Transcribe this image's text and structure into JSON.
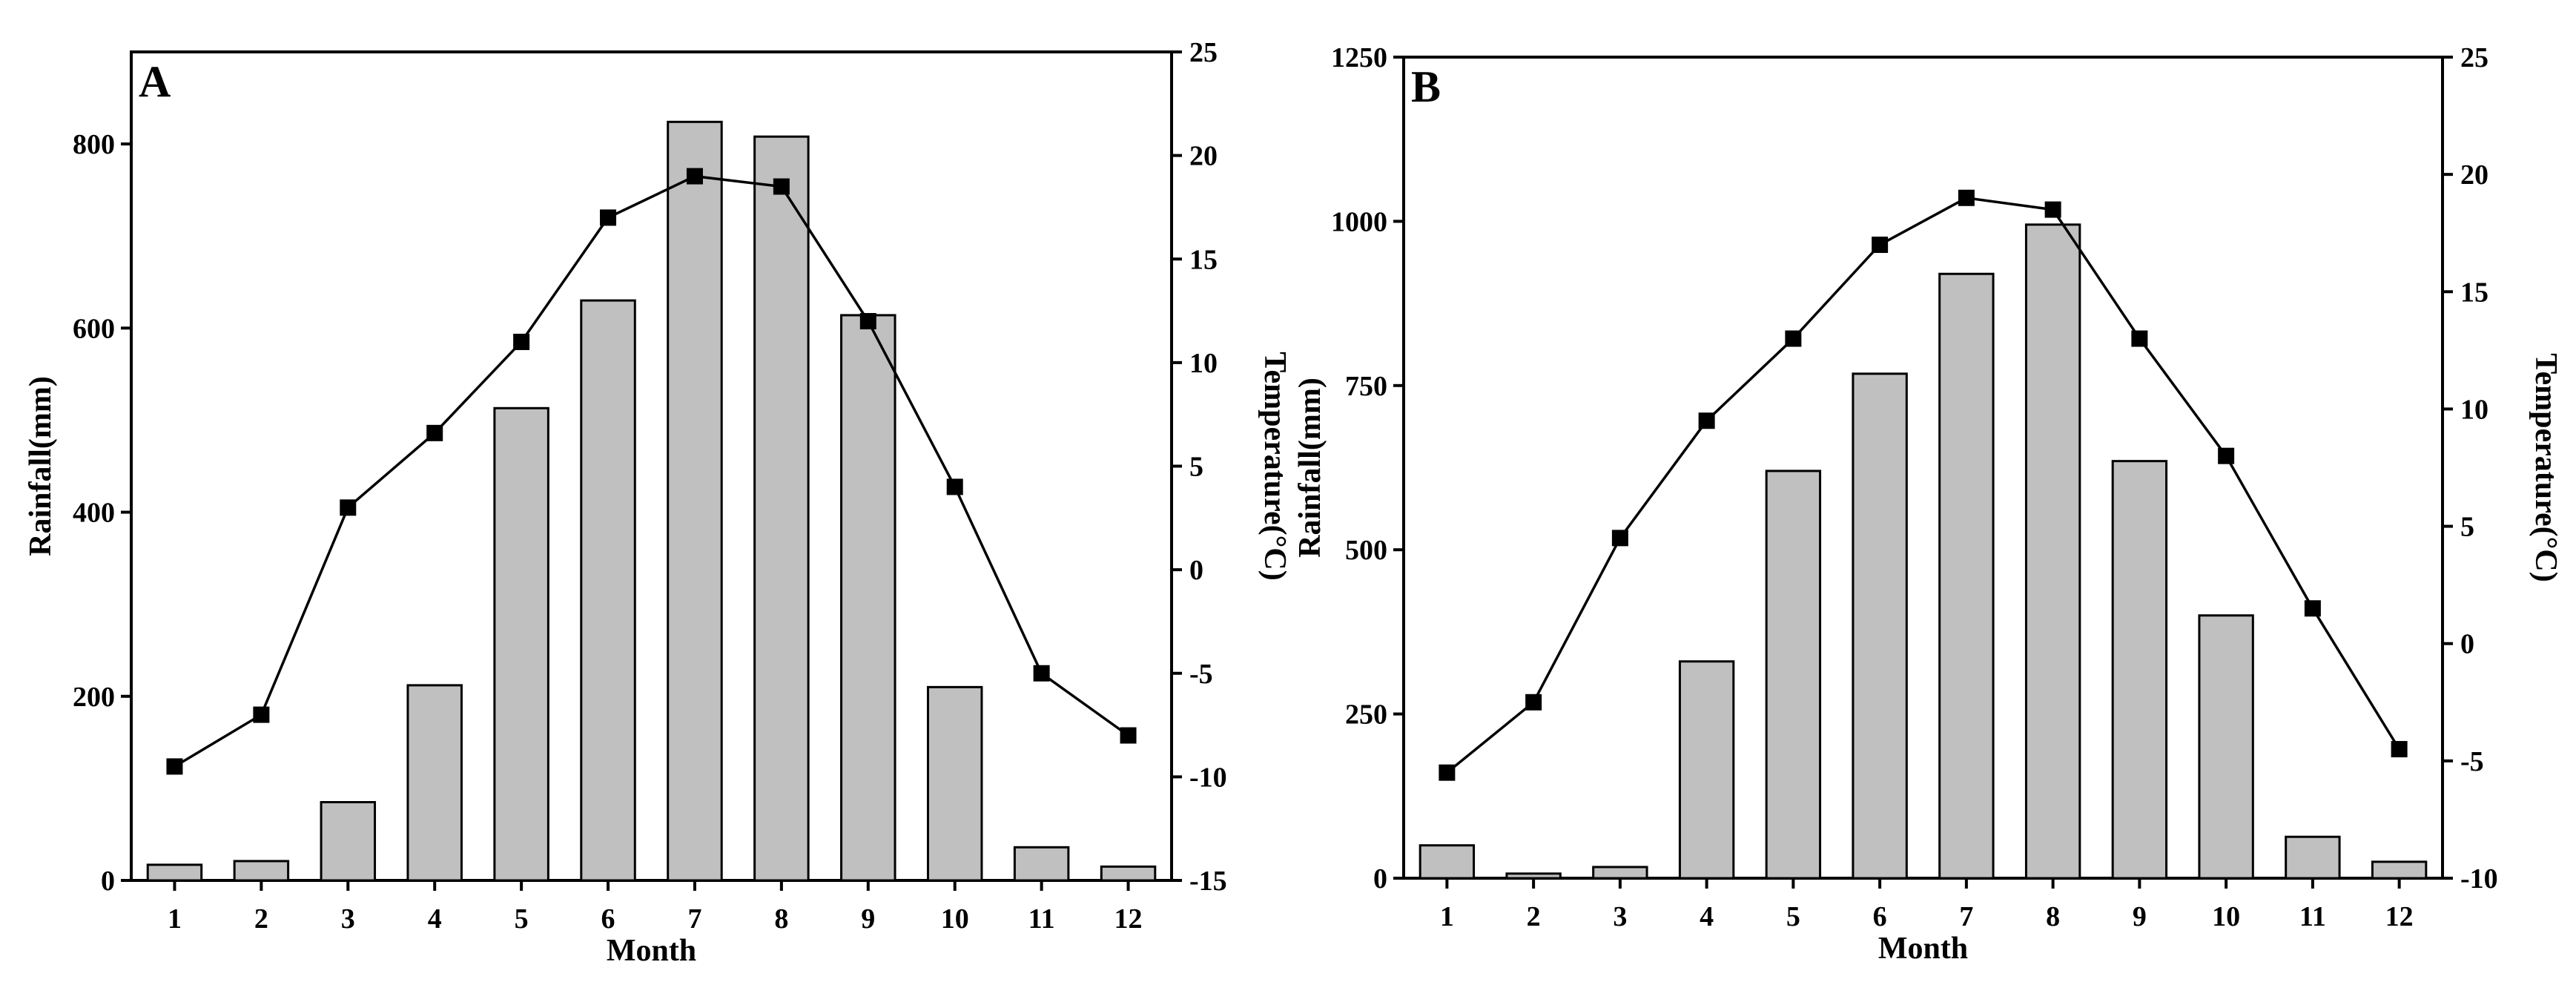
{
  "chart_data": [
    {
      "panel": "A",
      "type": "bar+line",
      "categories": [
        "1",
        "2",
        "3",
        "4",
        "5",
        "6",
        "7",
        "8",
        "9",
        "10",
        "11",
        "12"
      ],
      "xlabel": "Month",
      "series": [
        {
          "name": "Rainfall",
          "kind": "bar",
          "axis": "left",
          "values": [
            17,
            21,
            85,
            212,
            513,
            630,
            824,
            808,
            614,
            210,
            36,
            15
          ]
        },
        {
          "name": "Temperature",
          "kind": "line",
          "axis": "right",
          "values": [
            -9.5,
            -7,
            3,
            6.6,
            11,
            17,
            19,
            18.5,
            12,
            4,
            -5,
            -8
          ]
        }
      ],
      "left_axis": {
        "label": "Rainfall(mm)",
        "ylim": [
          0,
          900
        ],
        "ticks": [
          0,
          200,
          400,
          600,
          800
        ],
        "tick_labels": [
          "0",
          "200",
          "400",
          "600",
          "800"
        ]
      },
      "right_axis": {
        "label": "Temperature(°C)",
        "ylim": [
          -15,
          25
        ],
        "ticks": [
          -15,
          -10,
          -5,
          0,
          5,
          10,
          15,
          20,
          25
        ],
        "tick_labels": [
          "-15",
          "-10",
          "-5",
          "0",
          "5",
          "10",
          "15",
          "20",
          "25"
        ]
      }
    },
    {
      "panel": "B",
      "type": "bar+line",
      "categories": [
        "1",
        "2",
        "3",
        "4",
        "5",
        "6",
        "7",
        "8",
        "9",
        "10",
        "11",
        "12"
      ],
      "xlabel": "Month",
      "series": [
        {
          "name": "Rainfall",
          "kind": "bar",
          "axis": "left",
          "values": [
            50,
            7,
            17,
            330,
            620,
            768,
            920,
            995,
            635,
            400,
            63,
            25
          ]
        },
        {
          "name": "Temperature",
          "kind": "line",
          "axis": "right",
          "values": [
            -5.5,
            -2.5,
            4.5,
            9.5,
            13,
            17,
            19,
            18.5,
            13,
            8,
            1.5,
            -4.5
          ]
        }
      ],
      "left_axis": {
        "label": "Rainfall(mm)",
        "ylim": [
          0,
          1250
        ],
        "ticks": [
          0,
          250,
          500,
          750,
          1000,
          1250
        ],
        "tick_labels": [
          "0",
          "250",
          "500",
          "750",
          "1000",
          "1250"
        ]
      },
      "right_axis": {
        "label": "Temperature(°C)",
        "ylim": [
          -10,
          25
        ],
        "ticks": [
          -10,
          -5,
          0,
          5,
          10,
          15,
          20,
          25
        ],
        "tick_labels": [
          "-10",
          "-5",
          "0",
          "5",
          "10",
          "15",
          "20",
          "25"
        ]
      }
    }
  ]
}
